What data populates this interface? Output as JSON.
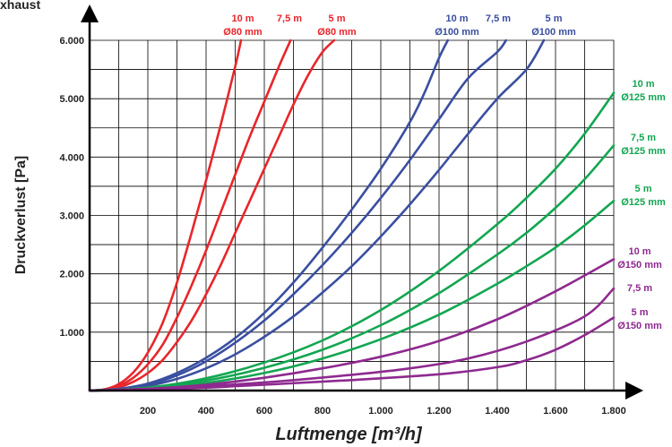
{
  "chart_data": {
    "type": "line",
    "corner_label": "xhaust",
    "xlabel": "Luftmenge [m³/h]",
    "ylabel": "Druckverlust  [Pa]",
    "xlim": [
      0,
      1800
    ],
    "ylim": [
      0,
      6000
    ],
    "x_ticks": [
      "200",
      "400",
      "600",
      "800",
      "1.000",
      "1.200",
      "1.400",
      "1.600",
      "1.800"
    ],
    "y_ticks": [
      "1.000",
      "2.000",
      "3.000",
      "4.000",
      "5.000",
      "6.000"
    ],
    "grid": true,
    "colors": {
      "d80": "#e8262b",
      "d100": "#3a4fa0",
      "d125": "#13a651",
      "d150": "#8e2a8f",
      "grid": "#000000"
    },
    "series": [
      {
        "group": "d80",
        "label_line1": "10 m",
        "label_line2": "Ø80 mm",
        "points": [
          [
            0,
            0
          ],
          [
            50,
            20
          ],
          [
            100,
            110
          ],
          [
            150,
            310
          ],
          [
            200,
            650
          ],
          [
            250,
            1150
          ],
          [
            300,
            1850
          ],
          [
            350,
            2700
          ],
          [
            400,
            3600
          ],
          [
            450,
            4550
          ],
          [
            500,
            5550
          ],
          [
            520,
            6000
          ]
        ]
      },
      {
        "group": "d80",
        "label_line1": "7,5 m",
        "label_line2": "",
        "points": [
          [
            0,
            0
          ],
          [
            50,
            15
          ],
          [
            100,
            80
          ],
          [
            150,
            220
          ],
          [
            200,
            450
          ],
          [
            250,
            780
          ],
          [
            300,
            1250
          ],
          [
            350,
            1800
          ],
          [
            400,
            2400
          ],
          [
            450,
            3050
          ],
          [
            500,
            3700
          ],
          [
            550,
            4350
          ],
          [
            600,
            4950
          ],
          [
            650,
            5550
          ],
          [
            690,
            6000
          ]
        ]
      },
      {
        "group": "d80",
        "label_line1": "5 m",
        "label_line2": "Ø80 mm",
        "points": [
          [
            0,
            0
          ],
          [
            50,
            10
          ],
          [
            100,
            55
          ],
          [
            150,
            150
          ],
          [
            200,
            300
          ],
          [
            250,
            520
          ],
          [
            300,
            830
          ],
          [
            350,
            1200
          ],
          [
            400,
            1650
          ],
          [
            450,
            2150
          ],
          [
            500,
            2700
          ],
          [
            550,
            3250
          ],
          [
            600,
            3800
          ],
          [
            650,
            4350
          ],
          [
            700,
            4900
          ],
          [
            750,
            5400
          ],
          [
            800,
            5800
          ],
          [
            840,
            6000
          ]
        ]
      },
      {
        "group": "d100",
        "label_line1": "10 m",
        "label_line2": "Ø100 mm",
        "points": [
          [
            0,
            0
          ],
          [
            100,
            30
          ],
          [
            200,
            120
          ],
          [
            300,
            300
          ],
          [
            400,
            560
          ],
          [
            500,
            900
          ],
          [
            600,
            1330
          ],
          [
            700,
            1850
          ],
          [
            800,
            2450
          ],
          [
            900,
            3100
          ],
          [
            1000,
            3800
          ],
          [
            1100,
            4600
          ],
          [
            1150,
            5100
          ],
          [
            1200,
            5700
          ],
          [
            1230,
            6000
          ]
        ]
      },
      {
        "group": "d100",
        "label_line1": "7,5 m",
        "label_line2": "",
        "points": [
          [
            0,
            0
          ],
          [
            100,
            25
          ],
          [
            200,
            100
          ],
          [
            300,
            260
          ],
          [
            400,
            500
          ],
          [
            500,
            820
          ],
          [
            600,
            1200
          ],
          [
            700,
            1650
          ],
          [
            800,
            2150
          ],
          [
            900,
            2700
          ],
          [
            1000,
            3300
          ],
          [
            1100,
            3950
          ],
          [
            1200,
            4650
          ],
          [
            1300,
            5350
          ],
          [
            1400,
            5800
          ],
          [
            1430,
            6000
          ]
        ]
      },
      {
        "group": "d100",
        "label_line1": "5 m",
        "label_line2": "Ø100 mm",
        "points": [
          [
            0,
            0
          ],
          [
            100,
            20
          ],
          [
            200,
            80
          ],
          [
            300,
            200
          ],
          [
            400,
            380
          ],
          [
            500,
            620
          ],
          [
            600,
            920
          ],
          [
            700,
            1270
          ],
          [
            800,
            1680
          ],
          [
            900,
            2130
          ],
          [
            1000,
            2640
          ],
          [
            1100,
            3190
          ],
          [
            1200,
            3780
          ],
          [
            1300,
            4400
          ],
          [
            1400,
            5000
          ],
          [
            1500,
            5500
          ],
          [
            1560,
            6000
          ]
        ]
      },
      {
        "group": "d125",
        "label_line1": "10 m",
        "label_line2": "Ø125 mm",
        "points": [
          [
            0,
            0
          ],
          [
            200,
            50
          ],
          [
            400,
            210
          ],
          [
            600,
            480
          ],
          [
            800,
            860
          ],
          [
            1000,
            1380
          ],
          [
            1200,
            2050
          ],
          [
            1400,
            2850
          ],
          [
            1500,
            3300
          ],
          [
            1600,
            3800
          ],
          [
            1700,
            4400
          ],
          [
            1800,
            5100
          ]
        ]
      },
      {
        "group": "d125",
        "label_line1": "7,5 m",
        "label_line2": "Ø125 mm",
        "points": [
          [
            0,
            0
          ],
          [
            200,
            40
          ],
          [
            400,
            170
          ],
          [
            600,
            390
          ],
          [
            800,
            700
          ],
          [
            1000,
            1120
          ],
          [
            1200,
            1670
          ],
          [
            1400,
            2330
          ],
          [
            1500,
            2700
          ],
          [
            1600,
            3130
          ],
          [
            1700,
            3620
          ],
          [
            1800,
            4200
          ]
        ]
      },
      {
        "group": "d125",
        "label_line1": "5 m",
        "label_line2": "Ø125 mm",
        "points": [
          [
            0,
            0
          ],
          [
            200,
            30
          ],
          [
            400,
            130
          ],
          [
            600,
            300
          ],
          [
            800,
            550
          ],
          [
            1000,
            880
          ],
          [
            1200,
            1300
          ],
          [
            1400,
            1830
          ],
          [
            1500,
            2130
          ],
          [
            1600,
            2450
          ],
          [
            1700,
            2830
          ],
          [
            1800,
            3250
          ]
        ]
      },
      {
        "group": "d150",
        "label_line1": "10 m",
        "label_line2": "Ø150 mm",
        "points": [
          [
            0,
            0
          ],
          [
            200,
            30
          ],
          [
            400,
            100
          ],
          [
            600,
            220
          ],
          [
            800,
            380
          ],
          [
            1000,
            580
          ],
          [
            1200,
            850
          ],
          [
            1400,
            1220
          ],
          [
            1600,
            1700
          ],
          [
            1800,
            2250
          ]
        ]
      },
      {
        "group": "d150",
        "label_line1": "7,5 m",
        "label_line2": "",
        "points": [
          [
            0,
            0
          ],
          [
            300,
            50
          ],
          [
            600,
            140
          ],
          [
            900,
            270
          ],
          [
            1100,
            380
          ],
          [
            1300,
            550
          ],
          [
            1500,
            840
          ],
          [
            1700,
            1270
          ],
          [
            1800,
            1750
          ]
        ]
      },
      {
        "group": "d150",
        "label_line1": "5 m",
        "label_line2": "Ø150 mm",
        "points": [
          [
            0,
            0
          ],
          [
            300,
            30
          ],
          [
            600,
            100
          ],
          [
            900,
            180
          ],
          [
            1200,
            280
          ],
          [
            1400,
            400
          ],
          [
            1500,
            520
          ],
          [
            1600,
            700
          ],
          [
            1700,
            950
          ],
          [
            1800,
            1250
          ]
        ]
      }
    ]
  }
}
